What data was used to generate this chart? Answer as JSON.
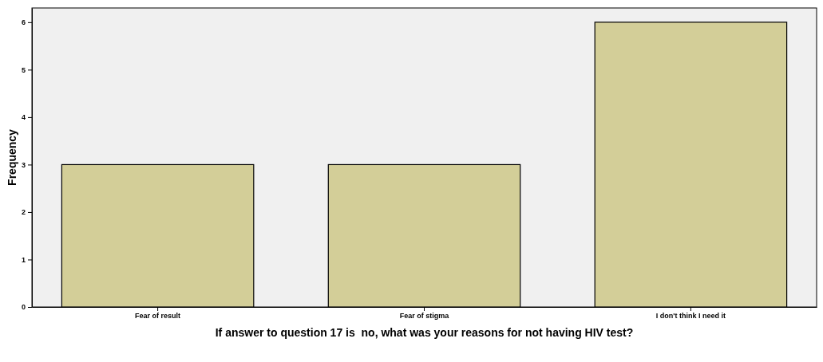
{
  "chart_data": {
    "type": "bar",
    "xlabel": "If answer to question 17 is  no, what was your reasons for not having HIV test?",
    "ylabel": "Frequency",
    "categories": [
      "Fear of result",
      "Fear of stigma",
      "I don't think I need it"
    ],
    "values": [
      3,
      3,
      6
    ],
    "color": "#d3ce98",
    "ylim": [
      0,
      6.3
    ],
    "yticks": [
      0,
      1,
      2,
      3,
      4,
      5,
      6
    ],
    "grid": false
  }
}
